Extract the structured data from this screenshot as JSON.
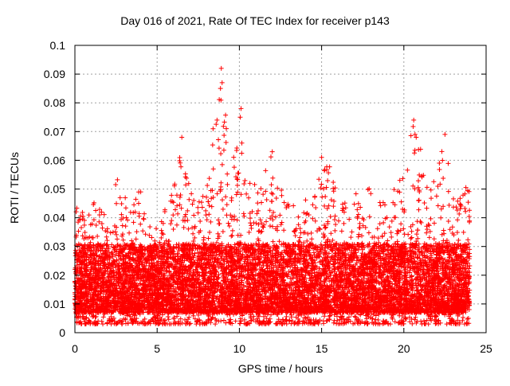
{
  "chart_data": {
    "type": "scatter",
    "title": "Day 016 of 2021, Rate Of TEC Index for receiver p143",
    "xlabel": "GPS time / hours",
    "ylabel": "ROTI / TECUs",
    "xlim": [
      0,
      25
    ],
    "ylim": [
      0,
      0.1
    ],
    "xticks": [
      0,
      5,
      10,
      15,
      20,
      25
    ],
    "xtick_labels": [
      "0",
      "5",
      "10",
      "15",
      "20",
      "25"
    ],
    "yticks": [
      0,
      0.01,
      0.02,
      0.03,
      0.04,
      0.05,
      0.06,
      0.07,
      0.08,
      0.09,
      0.1
    ],
    "ytick_labels": [
      "0",
      "0.01",
      "0.02",
      "0.03",
      "0.04",
      "0.05",
      "0.06",
      "0.07",
      "0.08",
      "0.09",
      "0.1"
    ],
    "grid": true,
    "marker": "+",
    "color": "#ff0000",
    "x_extent": [
      0,
      24
    ],
    "baseline_range": [
      0.003,
      0.035
    ],
    "envelope": {
      "x": [
        0,
        0.5,
        1,
        1.5,
        2,
        2.5,
        3,
        3.5,
        4,
        4.5,
        5,
        5.5,
        6,
        6.5,
        7,
        7.5,
        8,
        8.5,
        9,
        9.5,
        10,
        10.5,
        11,
        11.5,
        12,
        12.5,
        13,
        13.5,
        14,
        14.5,
        15,
        15.5,
        16,
        16.5,
        17,
        17.5,
        18,
        18.5,
        19,
        19.5,
        20,
        20.5,
        21,
        21.5,
        22,
        22.5,
        23,
        23.5,
        24
      ],
      "ymax": [
        0.046,
        0.042,
        0.047,
        0.043,
        0.04,
        0.055,
        0.05,
        0.043,
        0.054,
        0.04,
        0.038,
        0.045,
        0.05,
        0.068,
        0.05,
        0.048,
        0.05,
        0.071,
        0.092,
        0.06,
        0.078,
        0.05,
        0.058,
        0.055,
        0.063,
        0.055,
        0.05,
        0.045,
        0.047,
        0.045,
        0.061,
        0.059,
        0.05,
        0.045,
        0.05,
        0.043,
        0.054,
        0.05,
        0.047,
        0.052,
        0.055,
        0.074,
        0.068,
        0.05,
        0.056,
        0.068,
        0.047,
        0.047,
        0.056
      ]
    },
    "highlights": [
      {
        "x": 8.9,
        "y": 0.092
      },
      {
        "x": 8.95,
        "y": 0.087
      },
      {
        "x": 8.85,
        "y": 0.085
      },
      {
        "x": 10.1,
        "y": 0.078
      },
      {
        "x": 10.05,
        "y": 0.075
      },
      {
        "x": 10.15,
        "y": 0.066
      },
      {
        "x": 20.6,
        "y": 0.074
      },
      {
        "x": 20.75,
        "y": 0.068
      },
      {
        "x": 22.5,
        "y": 0.069
      },
      {
        "x": 6.5,
        "y": 0.068
      },
      {
        "x": 8.4,
        "y": 0.071
      },
      {
        "x": 12.0,
        "y": 0.063
      },
      {
        "x": 15.0,
        "y": 0.061
      }
    ],
    "density_per_hour": 420
  }
}
